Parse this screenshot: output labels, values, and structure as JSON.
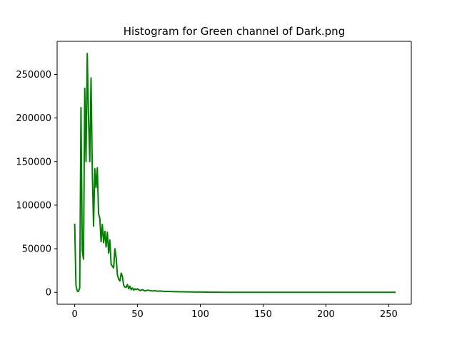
{
  "chart_data": {
    "type": "line",
    "title": "Histogram for Green channel of Dark.png",
    "xlabel": "",
    "ylabel": "",
    "xlim": [
      -14,
      268
    ],
    "ylim": [
      -13700,
      288000
    ],
    "x_ticks": [
      0,
      50,
      100,
      150,
      200,
      250
    ],
    "y_ticks": [
      0,
      50000,
      100000,
      150000,
      200000,
      250000
    ],
    "grid": false,
    "legend": "none",
    "colors": {
      "series": "#008000",
      "axes": "#000000",
      "background": "#ffffff"
    },
    "series": [
      {
        "x": [
          0,
          1,
          2,
          3,
          4,
          5,
          6,
          7,
          8,
          9,
          10,
          11,
          12,
          13,
          14,
          15,
          16,
          17,
          18,
          19,
          20,
          21,
          22,
          23,
          24,
          25,
          26,
          27,
          28,
          29,
          30,
          31,
          32,
          33,
          34,
          35,
          36,
          37,
          38,
          39,
          40,
          41,
          42,
          43,
          44,
          45,
          46,
          47,
          48,
          49,
          50,
          52,
          54,
          56,
          58,
          60,
          62,
          64,
          66,
          68,
          70,
          72,
          74,
          76,
          78,
          80,
          82,
          84,
          86,
          88,
          90,
          92,
          94,
          96,
          98,
          100,
          105,
          110,
          115,
          120,
          130,
          140,
          150,
          160,
          170,
          180,
          190,
          200,
          210,
          220,
          230,
          240,
          250,
          255
        ],
        "values": [
          78000,
          8000,
          1500,
          1000,
          5000,
          212000,
          48000,
          38000,
          234000,
          150000,
          274000,
          200000,
          150000,
          246000,
          140000,
          76000,
          142000,
          120000,
          143000,
          90000,
          85000,
          58000,
          78000,
          57000,
          70000,
          52000,
          69000,
          45000,
          60000,
          32000,
          30000,
          28000,
          50000,
          40000,
          20000,
          15000,
          13000,
          22000,
          18000,
          8000,
          6000,
          5500,
          9000,
          4000,
          7000,
          3000,
          5000,
          2500,
          4000,
          3000,
          4000,
          2000,
          3000,
          1500,
          2500,
          2000,
          1500,
          1800,
          1200,
          1500,
          1200,
          1000,
          1000,
          900,
          800,
          700,
          700,
          600,
          600,
          500,
          500,
          400,
          400,
          300,
          300,
          300,
          200,
          100,
          50,
          20,
          10,
          10,
          5,
          5,
          5,
          5,
          5,
          5,
          5,
          5,
          5,
          5,
          5,
          5
        ]
      }
    ]
  }
}
